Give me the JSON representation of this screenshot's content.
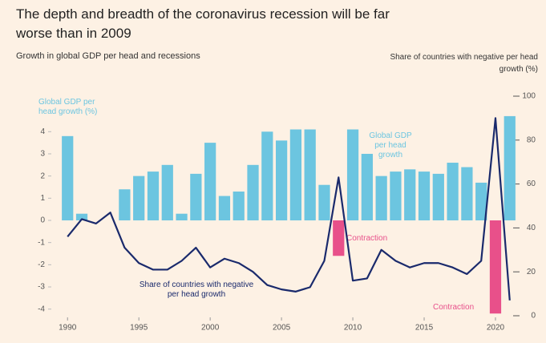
{
  "chart_data": {
    "type": "bar-line",
    "title": "The depth and breadth of the coronavirus recession will be far worse than in 2009",
    "subtitle": "Growth in global GDP per head and recessions",
    "y2label": "Share of countries with negative per head growth (%)",
    "x": [
      1990,
      1991,
      1992,
      1993,
      1994,
      1995,
      1996,
      1997,
      1998,
      1999,
      2000,
      2001,
      2002,
      2003,
      2004,
      2005,
      2006,
      2007,
      2008,
      2009,
      2010,
      2011,
      2012,
      2013,
      2014,
      2015,
      2016,
      2017,
      2018,
      2019,
      2020,
      2021
    ],
    "xlim": [
      1989.2,
      2021.8
    ],
    "xticks": [
      1990,
      1995,
      2000,
      2005,
      2010,
      2015,
      2020
    ],
    "ylim": [
      -4.3,
      5.6
    ],
    "yticks": [
      4,
      3,
      2,
      1,
      0,
      -1,
      -2,
      -3,
      -4
    ],
    "y2lim": [
      0,
      100
    ],
    "y2ticks": [
      100,
      80,
      60,
      40,
      20,
      0
    ],
    "series": [
      {
        "type": "bar",
        "color": "#6cc5e0",
        "negative_color": "#e8508a",
        "values": [
          3.8,
          0.3,
          0,
          0,
          1.4,
          2.0,
          2.2,
          2.5,
          0.3,
          2.1,
          3.5,
          1.1,
          1.3,
          2.5,
          4.0,
          3.6,
          4.1,
          4.1,
          1.6,
          -1.6,
          4.1,
          3.0,
          2.0,
          2.2,
          2.3,
          2.2,
          2.1,
          2.6,
          2.4,
          1.7,
          -4.2,
          4.7
        ]
      },
      {
        "type": "line",
        "axis": "y2",
        "color": "#1a2a6c",
        "values": [
          36,
          44,
          42,
          47,
          31,
          24,
          21,
          21,
          25,
          31,
          22,
          26,
          24,
          20,
          14,
          12,
          11,
          13,
          25,
          63,
          16,
          17,
          30,
          25,
          22,
          24,
          24,
          22,
          19,
          25,
          90,
          7
        ]
      }
    ],
    "annotations": [
      "Global GDP per head growth (%)",
      "Global GDP per head growth",
      "Contraction",
      "Contraction",
      "Share of countries with negative per head growth"
    ]
  }
}
